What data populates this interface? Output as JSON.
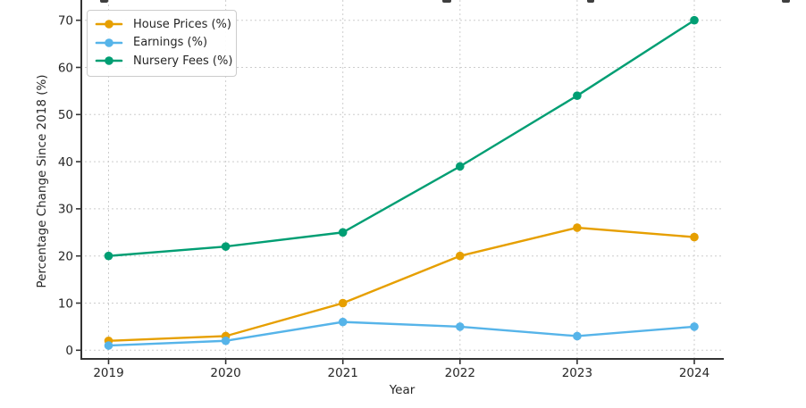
{
  "chart_data": {
    "type": "line",
    "x": [
      2019,
      2020,
      2021,
      2022,
      2023,
      2024
    ],
    "xlabel": "Year",
    "ylabel": "Percentage Change Since 2018 (%)",
    "yticks": [
      0,
      10,
      20,
      30,
      40,
      50,
      60,
      70
    ],
    "ylim": [
      -2.2,
      74.4
    ],
    "xlim": [
      2018.76,
      2024.24
    ],
    "grid": true,
    "grid_style": "dotted",
    "legend_position": "upper-left",
    "marker": "circle",
    "series": [
      {
        "name": "House Prices (%)",
        "color": "#E69F00",
        "values": [
          2,
          3,
          10,
          20,
          26,
          24
        ]
      },
      {
        "name": "Earnings (%)",
        "color": "#56B4E9",
        "values": [
          1,
          2,
          6,
          5,
          3,
          5
        ]
      },
      {
        "name": "Nursery Fees (%)",
        "color": "#009E73",
        "values": [
          20,
          22,
          25,
          39,
          54,
          70
        ]
      }
    ]
  },
  "colors": {
    "background": "#ffffff",
    "axis_text": "#262626",
    "spine": "#333333",
    "grid": "#cdcdcd",
    "legend_border": "#cccccc"
  }
}
